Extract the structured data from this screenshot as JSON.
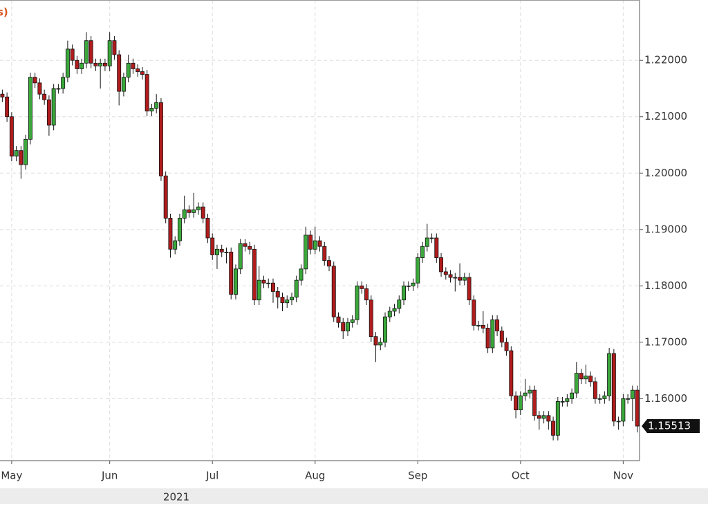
{
  "chart_data": {
    "type": "candlestick",
    "title": "s)",
    "x_axis_title": "2021",
    "categories": [
      null,
      null,
      "May",
      null,
      null,
      null,
      null,
      null,
      null,
      null,
      null,
      null,
      null,
      null,
      null,
      null,
      null,
      null,
      null,
      null,
      null,
      null,
      null,
      "Jun",
      null,
      null,
      null,
      null,
      null,
      null,
      null,
      null,
      null,
      null,
      null,
      null,
      null,
      null,
      null,
      null,
      null,
      null,
      null,
      null,
      null,
      "Jul",
      null,
      null,
      null,
      null,
      null,
      null,
      null,
      null,
      null,
      null,
      null,
      null,
      null,
      null,
      null,
      null,
      null,
      null,
      null,
      null,
      null,
      "Aug",
      null,
      null,
      null,
      null,
      null,
      null,
      null,
      null,
      null,
      null,
      null,
      null,
      null,
      null,
      null,
      null,
      null,
      null,
      null,
      null,
      null,
      "Sep",
      null,
      null,
      null,
      null,
      null,
      null,
      null,
      null,
      null,
      null,
      null,
      null,
      null,
      null,
      null,
      null,
      null,
      null,
      null,
      null,
      null,
      "Oct",
      null,
      null,
      null,
      null,
      null,
      null,
      null,
      null,
      null,
      null,
      null,
      null,
      null,
      null,
      null,
      null,
      null,
      null,
      null,
      null,
      null,
      "Nov",
      null,
      null,
      null
    ],
    "open": [
      1.214,
      1.2135,
      1.21,
      1.203,
      1.204,
      1.2015,
      1.206,
      1.217,
      1.216,
      1.214,
      1.213,
      1.2085,
      1.215,
      1.215,
      1.217,
      1.222,
      1.22,
      1.2185,
      1.2195,
      1.2235,
      1.2195,
      1.219,
      1.2195,
      1.219,
      1.2235,
      1.221,
      1.2145,
      1.217,
      1.2195,
      1.2185,
      1.218,
      1.2175,
      1.211,
      1.2115,
      1.2125,
      1.1995,
      1.192,
      1.1865,
      1.188,
      1.192,
      1.1935,
      1.193,
      1.1935,
      1.194,
      1.192,
      1.1885,
      1.1855,
      1.1865,
      1.186,
      1.186,
      1.1785,
      1.183,
      1.1875,
      1.187,
      1.1865,
      1.1775,
      1.181,
      1.1805,
      1.1805,
      1.179,
      1.178,
      1.177,
      1.1775,
      1.178,
      1.181,
      1.183,
      1.189,
      1.1865,
      1.188,
      1.187,
      1.1845,
      1.1835,
      1.1745,
      1.1735,
      1.172,
      1.1735,
      1.174,
      1.18,
      1.1795,
      1.1775,
      1.171,
      1.1695,
      1.17,
      1.1745,
      1.1755,
      1.176,
      1.1775,
      1.18,
      1.18,
      1.1805,
      1.185,
      1.187,
      1.1885,
      1.1885,
      1.185,
      1.1825,
      1.182,
      1.1815,
      1.1815,
      1.181,
      1.1815,
      1.1775,
      1.173,
      1.173,
      1.1725,
      1.169,
      1.174,
      1.172,
      1.17,
      1.1685,
      1.1605,
      1.158,
      1.1605,
      1.161,
      1.1615,
      1.157,
      1.1565,
      1.157,
      1.156,
      1.1535,
      1.1595,
      1.1595,
      1.16,
      1.161,
      1.1645,
      1.1635,
      1.164,
      1.163,
      1.16,
      1.16,
      1.1605,
      1.168,
      1.156,
      1.156,
      1.16,
      1.16,
      1.1615
    ],
    "high": [
      1.2148,
      1.2143,
      1.2108,
      1.2048,
      1.2048,
      1.2068,
      1.2178,
      1.2178,
      1.2168,
      1.2148,
      1.2138,
      1.2158,
      1.2158,
      1.2178,
      1.2235,
      1.2228,
      1.2208,
      1.2203,
      1.225,
      1.2243,
      1.2203,
      1.2203,
      1.2203,
      1.225,
      1.2243,
      1.2218,
      1.2178,
      1.221,
      1.2203,
      1.2193,
      1.2188,
      1.2183,
      1.2123,
      1.214,
      1.2133,
      1.2003,
      1.1928,
      1.1888,
      1.1928,
      1.196,
      1.1943,
      1.1965,
      1.1948,
      1.1948,
      1.1928,
      1.1893,
      1.1873,
      1.1873,
      1.1868,
      1.1868,
      1.1838,
      1.1883,
      1.1883,
      1.1878,
      1.1873,
      1.1835,
      1.1818,
      1.1813,
      1.1813,
      1.1798,
      1.1788,
      1.1783,
      1.1788,
      1.1818,
      1.1838,
      1.1905,
      1.1898,
      1.1905,
      1.1888,
      1.1878,
      1.1853,
      1.1843,
      1.1753,
      1.1743,
      1.1743,
      1.1748,
      1.1808,
      1.1808,
      1.1803,
      1.1783,
      1.1718,
      1.1708,
      1.1753,
      1.1763,
      1.1768,
      1.1783,
      1.1808,
      1.1808,
      1.1813,
      1.1858,
      1.1878,
      1.191,
      1.1893,
      1.1893,
      1.1858,
      1.1833,
      1.1828,
      1.1823,
      1.184,
      1.1823,
      1.1823,
      1.1783,
      1.1738,
      1.1755,
      1.1733,
      1.1748,
      1.1748,
      1.1728,
      1.1708,
      1.1693,
      1.1613,
      1.1613,
      1.1635,
      1.1623,
      1.1623,
      1.1578,
      1.1578,
      1.1578,
      1.1568,
      1.1603,
      1.1603,
      1.1608,
      1.1618,
      1.1665,
      1.1653,
      1.166,
      1.1648,
      1.1638,
      1.1608,
      1.1613,
      1.169,
      1.1688,
      1.1568,
      1.1608,
      1.1608,
      1.1623,
      1.1623
    ],
    "low": [
      1.2126,
      1.2091,
      1.2021,
      1.2021,
      1.199,
      1.2006,
      1.2051,
      1.2151,
      1.2131,
      1.2121,
      1.2066,
      1.2076,
      1.2141,
      1.2141,
      1.2161,
      1.2191,
      1.2176,
      1.2176,
      1.2186,
      1.2186,
      1.2181,
      1.215,
      1.2181,
      1.2181,
      1.2201,
      1.212,
      1.2136,
      1.2161,
      1.2176,
      1.2171,
      1.2166,
      1.2101,
      1.2101,
      1.2106,
      1.1986,
      1.1911,
      1.185,
      1.1856,
      1.1871,
      1.1911,
      1.1921,
      1.1921,
      1.1926,
      1.1911,
      1.1876,
      1.1846,
      1.183,
      1.1851,
      1.184,
      1.1776,
      1.1776,
      1.1821,
      1.1861,
      1.1856,
      1.1766,
      1.1766,
      1.1796,
      1.1796,
      1.177,
      1.176,
      1.1755,
      1.1761,
      1.1766,
      1.1771,
      1.1801,
      1.1821,
      1.1856,
      1.1856,
      1.1861,
      1.1836,
      1.1826,
      1.1736,
      1.1726,
      1.1706,
      1.1711,
      1.1726,
      1.1731,
      1.1786,
      1.1766,
      1.1701,
      1.1665,
      1.1686,
      1.1691,
      1.1736,
      1.1746,
      1.1751,
      1.1766,
      1.1791,
      1.1791,
      1.1796,
      1.1841,
      1.1861,
      1.1876,
      1.1841,
      1.1816,
      1.1811,
      1.1806,
      1.179,
      1.1801,
      1.1801,
      1.1766,
      1.1721,
      1.1721,
      1.1716,
      1.1681,
      1.1681,
      1.1711,
      1.1691,
      1.1676,
      1.1596,
      1.1565,
      1.1571,
      1.1596,
      1.1601,
      1.1561,
      1.1545,
      1.1556,
      1.1545,
      1.1526,
      1.1526,
      1.1586,
      1.1586,
      1.1591,
      1.1601,
      1.1626,
      1.1626,
      1.1621,
      1.1591,
      1.1591,
      1.1591,
      1.1596,
      1.1551,
      1.1545,
      1.1551,
      1.1591,
      1.156,
      1.154
    ],
    "close": [
      1.2135,
      1.21,
      1.203,
      1.204,
      1.2015,
      1.206,
      1.217,
      1.216,
      1.214,
      1.213,
      1.2085,
      1.215,
      1.215,
      1.217,
      1.222,
      1.22,
      1.2185,
      1.2195,
      1.2235,
      1.2195,
      1.219,
      1.2195,
      1.219,
      1.2235,
      1.221,
      1.2145,
      1.217,
      1.2195,
      1.2185,
      1.218,
      1.2175,
      1.211,
      1.2115,
      1.2125,
      1.1995,
      1.192,
      1.1865,
      1.188,
      1.192,
      1.1935,
      1.193,
      1.1935,
      1.194,
      1.192,
      1.1885,
      1.1855,
      1.1865,
      1.186,
      1.186,
      1.1785,
      1.183,
      1.1875,
      1.187,
      1.1865,
      1.1775,
      1.181,
      1.1805,
      1.1805,
      1.179,
      1.178,
      1.177,
      1.1775,
      1.178,
      1.181,
      1.183,
      1.189,
      1.1865,
      1.188,
      1.187,
      1.1845,
      1.1835,
      1.1745,
      1.1735,
      1.172,
      1.1735,
      1.174,
      1.18,
      1.1795,
      1.1775,
      1.171,
      1.1695,
      1.17,
      1.1745,
      1.1755,
      1.176,
      1.1775,
      1.18,
      1.18,
      1.1805,
      1.185,
      1.187,
      1.1885,
      1.1885,
      1.185,
      1.1825,
      1.182,
      1.1815,
      1.1815,
      1.181,
      1.1815,
      1.1775,
      1.173,
      1.173,
      1.1725,
      1.169,
      1.174,
      1.172,
      1.17,
      1.1685,
      1.1605,
      1.158,
      1.1605,
      1.161,
      1.1615,
      1.157,
      1.1565,
      1.157,
      1.156,
      1.1535,
      1.1595,
      1.1595,
      1.16,
      1.161,
      1.1645,
      1.1635,
      1.164,
      1.163,
      1.16,
      1.16,
      1.1605,
      1.168,
      1.156,
      1.156,
      1.16,
      1.16,
      1.1615,
      1.15513
    ],
    "last_value": 1.15513,
    "up_color": "#3aa83a",
    "down_color": "#b01c1c",
    "title_color": "#d9541e",
    "ylim": [
      1.149,
      1.2307
    ],
    "yticks": [
      {
        "value": 1.16,
        "label": "1.16000"
      },
      {
        "value": 1.17,
        "label": "1.17000"
      },
      {
        "value": 1.18,
        "label": "1.18000"
      },
      {
        "value": 1.19,
        "label": "1.19000"
      },
      {
        "value": 1.2,
        "label": "1.20000"
      },
      {
        "value": 1.21,
        "label": "1.21000"
      },
      {
        "value": 1.22,
        "label": "1.22000"
      }
    ],
    "grid": true
  }
}
